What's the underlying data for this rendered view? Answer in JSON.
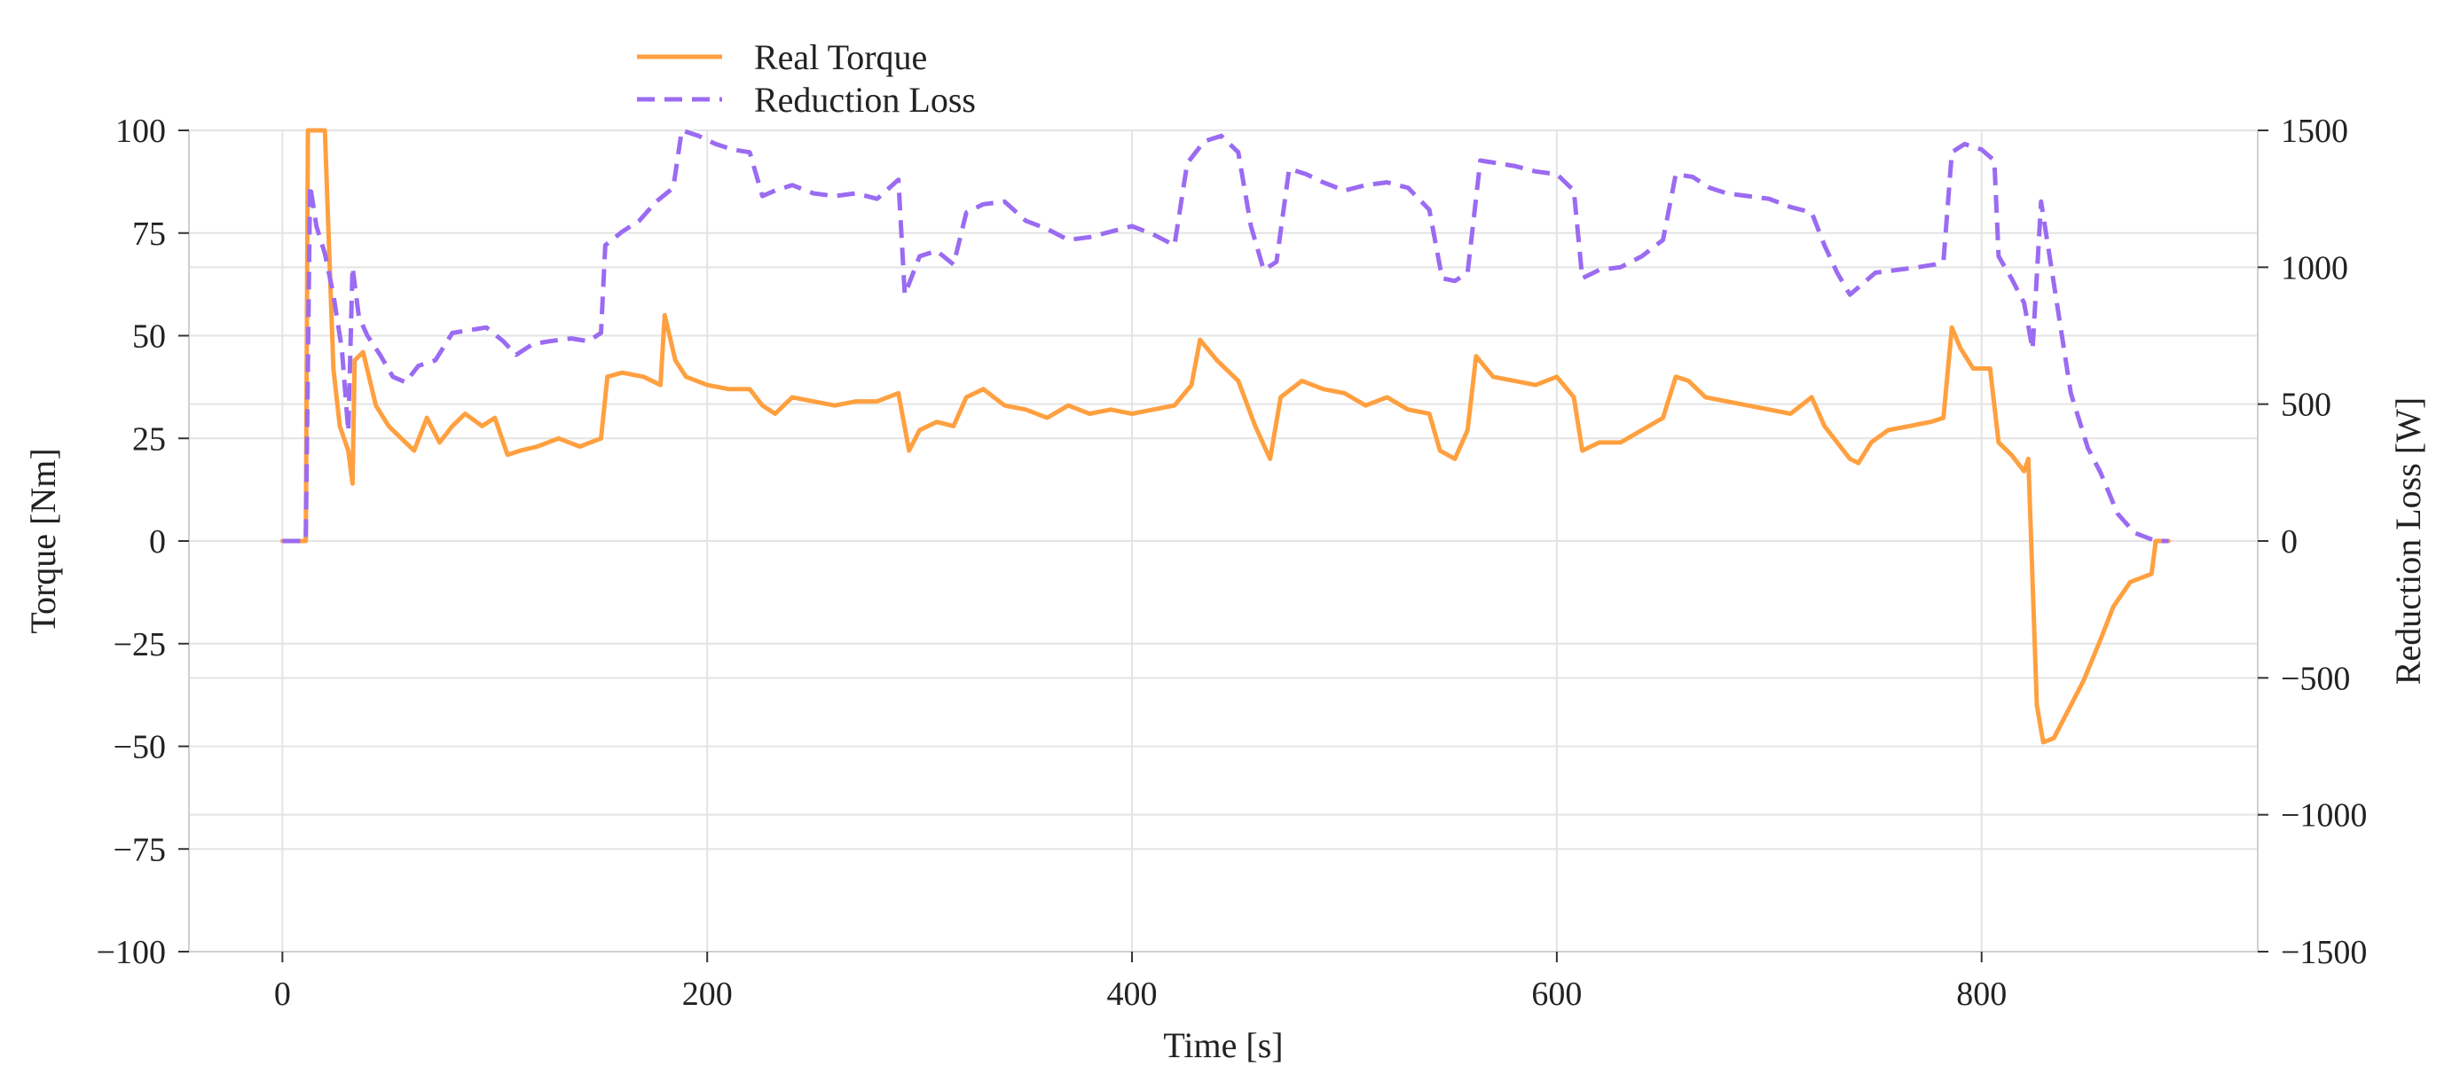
{
  "chart_data": {
    "type": "line",
    "title": "",
    "xlabel": "Time [s]",
    "ylabel": "Torque [Nm]",
    "y2label": "Reduction Loss [W]",
    "xlim": [
      -44,
      930
    ],
    "ylim": [
      -100,
      100
    ],
    "y2lim": [
      -1500,
      1500
    ],
    "xticks": [
      0,
      200,
      400,
      600,
      800
    ],
    "yticks": [
      -100,
      -75,
      -50,
      -25,
      0,
      25,
      50,
      75,
      100
    ],
    "y2ticks": [
      -1500,
      -1000,
      -500,
      0,
      500,
      1000,
      1500
    ],
    "grid": true,
    "legend_position": "top-left",
    "series": [
      {
        "name": "Real Torque",
        "axis": "left",
        "color": "#FFA040",
        "style": "solid",
        "points": [
          [
            0,
            0
          ],
          [
            11,
            0
          ],
          [
            12,
            100
          ],
          [
            20,
            100
          ],
          [
            24,
            42
          ],
          [
            27,
            28
          ],
          [
            31,
            22
          ],
          [
            33,
            14
          ],
          [
            34,
            44
          ],
          [
            38,
            46
          ],
          [
            44,
            33
          ],
          [
            50,
            28
          ],
          [
            56,
            25
          ],
          [
            62,
            22
          ],
          [
            68,
            30
          ],
          [
            74,
            24
          ],
          [
            80,
            28
          ],
          [
            86,
            31
          ],
          [
            94,
            28
          ],
          [
            100,
            30
          ],
          [
            106,
            21
          ],
          [
            112,
            22
          ],
          [
            120,
            23
          ],
          [
            130,
            25
          ],
          [
            140,
            23
          ],
          [
            150,
            25
          ],
          [
            153,
            40
          ],
          [
            160,
            41
          ],
          [
            170,
            40
          ],
          [
            178,
            38
          ],
          [
            180,
            55
          ],
          [
            185,
            44
          ],
          [
            190,
            40
          ],
          [
            200,
            38
          ],
          [
            210,
            37
          ],
          [
            220,
            37
          ],
          [
            226,
            33
          ],
          [
            232,
            31
          ],
          [
            240,
            35
          ],
          [
            250,
            34
          ],
          [
            260,
            33
          ],
          [
            270,
            34
          ],
          [
            280,
            34
          ],
          [
            290,
            36
          ],
          [
            295,
            22
          ],
          [
            300,
            27
          ],
          [
            308,
            29
          ],
          [
            316,
            28
          ],
          [
            322,
            35
          ],
          [
            330,
            37
          ],
          [
            340,
            33
          ],
          [
            350,
            32
          ],
          [
            360,
            30
          ],
          [
            370,
            33
          ],
          [
            380,
            31
          ],
          [
            390,
            32
          ],
          [
            400,
            31
          ],
          [
            410,
            32
          ],
          [
            420,
            33
          ],
          [
            428,
            38
          ],
          [
            432,
            49
          ],
          [
            440,
            44
          ],
          [
            450,
            39
          ],
          [
            458,
            28
          ],
          [
            465,
            20
          ],
          [
            470,
            35
          ],
          [
            480,
            39
          ],
          [
            490,
            37
          ],
          [
            500,
            36
          ],
          [
            510,
            33
          ],
          [
            520,
            35
          ],
          [
            530,
            32
          ],
          [
            540,
            31
          ],
          [
            545,
            22
          ],
          [
            552,
            20
          ],
          [
            558,
            27
          ],
          [
            562,
            45
          ],
          [
            570,
            40
          ],
          [
            580,
            39
          ],
          [
            590,
            38
          ],
          [
            600,
            40
          ],
          [
            608,
            35
          ],
          [
            612,
            22
          ],
          [
            620,
            24
          ],
          [
            630,
            24
          ],
          [
            640,
            27
          ],
          [
            650,
            30
          ],
          [
            656,
            40
          ],
          [
            662,
            39
          ],
          [
            670,
            35
          ],
          [
            680,
            34
          ],
          [
            690,
            33
          ],
          [
            700,
            32
          ],
          [
            710,
            31
          ],
          [
            720,
            35
          ],
          [
            726,
            28
          ],
          [
            732,
            24
          ],
          [
            738,
            20
          ],
          [
            742,
            19
          ],
          [
            748,
            24
          ],
          [
            756,
            27
          ],
          [
            766,
            28
          ],
          [
            776,
            29
          ],
          [
            782,
            30
          ],
          [
            786,
            52
          ],
          [
            790,
            47
          ],
          [
            796,
            42
          ],
          [
            804,
            42
          ],
          [
            808,
            24
          ],
          [
            814,
            21
          ],
          [
            820,
            17
          ],
          [
            822,
            20
          ],
          [
            826,
            -40
          ],
          [
            829,
            -49
          ],
          [
            834,
            -48
          ],
          [
            840,
            -42
          ],
          [
            848,
            -34
          ],
          [
            856,
            -24
          ],
          [
            862,
            -16
          ],
          [
            870,
            -10
          ],
          [
            880,
            -8
          ],
          [
            882,
            0
          ],
          [
            888,
            0
          ]
        ]
      },
      {
        "name": "Reduction Loss",
        "axis": "right",
        "color": "#9B6BF2",
        "style": "dashed",
        "points": [
          [
            0,
            0
          ],
          [
            11,
            0
          ],
          [
            13,
            1300
          ],
          [
            16,
            1150
          ],
          [
            20,
            1050
          ],
          [
            24,
            900
          ],
          [
            28,
            700
          ],
          [
            31,
            400
          ],
          [
            33,
            1000
          ],
          [
            36,
            820
          ],
          [
            40,
            750
          ],
          [
            46,
            680
          ],
          [
            52,
            600
          ],
          [
            58,
            580
          ],
          [
            64,
            640
          ],
          [
            72,
            660
          ],
          [
            80,
            760
          ],
          [
            88,
            770
          ],
          [
            96,
            780
          ],
          [
            104,
            730
          ],
          [
            110,
            680
          ],
          [
            118,
            720
          ],
          [
            126,
            730
          ],
          [
            136,
            740
          ],
          [
            144,
            730
          ],
          [
            150,
            760
          ],
          [
            152,
            1080
          ],
          [
            160,
            1130
          ],
          [
            168,
            1170
          ],
          [
            176,
            1240
          ],
          [
            184,
            1290
          ],
          [
            188,
            1500
          ],
          [
            196,
            1480
          ],
          [
            204,
            1450
          ],
          [
            212,
            1430
          ],
          [
            220,
            1420
          ],
          [
            226,
            1260
          ],
          [
            232,
            1280
          ],
          [
            240,
            1300
          ],
          [
            250,
            1270
          ],
          [
            260,
            1260
          ],
          [
            270,
            1270
          ],
          [
            280,
            1250
          ],
          [
            290,
            1320
          ],
          [
            293,
            900
          ],
          [
            300,
            1040
          ],
          [
            308,
            1060
          ],
          [
            316,
            1010
          ],
          [
            322,
            1200
          ],
          [
            330,
            1230
          ],
          [
            340,
            1240
          ],
          [
            350,
            1170
          ],
          [
            360,
            1140
          ],
          [
            370,
            1100
          ],
          [
            380,
            1110
          ],
          [
            390,
            1130
          ],
          [
            400,
            1150
          ],
          [
            410,
            1120
          ],
          [
            420,
            1080
          ],
          [
            426,
            1380
          ],
          [
            434,
            1460
          ],
          [
            442,
            1480
          ],
          [
            450,
            1420
          ],
          [
            456,
            1150
          ],
          [
            462,
            990
          ],
          [
            468,
            1020
          ],
          [
            474,
            1360
          ],
          [
            482,
            1340
          ],
          [
            490,
            1310
          ],
          [
            500,
            1280
          ],
          [
            510,
            1300
          ],
          [
            520,
            1310
          ],
          [
            530,
            1290
          ],
          [
            540,
            1210
          ],
          [
            546,
            960
          ],
          [
            552,
            950
          ],
          [
            558,
            980
          ],
          [
            564,
            1390
          ],
          [
            572,
            1380
          ],
          [
            580,
            1370
          ],
          [
            590,
            1350
          ],
          [
            600,
            1340
          ],
          [
            608,
            1280
          ],
          [
            612,
            960
          ],
          [
            620,
            990
          ],
          [
            630,
            1000
          ],
          [
            640,
            1040
          ],
          [
            650,
            1100
          ],
          [
            656,
            1340
          ],
          [
            664,
            1330
          ],
          [
            672,
            1290
          ],
          [
            680,
            1270
          ],
          [
            690,
            1260
          ],
          [
            700,
            1250
          ],
          [
            710,
            1220
          ],
          [
            720,
            1200
          ],
          [
            726,
            1080
          ],
          [
            732,
            980
          ],
          [
            738,
            900
          ],
          [
            744,
            940
          ],
          [
            750,
            980
          ],
          [
            760,
            990
          ],
          [
            770,
            1000
          ],
          [
            778,
            1010
          ],
          [
            782,
            1020
          ],
          [
            786,
            1420
          ],
          [
            792,
            1450
          ],
          [
            800,
            1430
          ],
          [
            806,
            1390
          ],
          [
            808,
            1040
          ],
          [
            814,
            960
          ],
          [
            820,
            870
          ],
          [
            824,
            700
          ],
          [
            828,
            1240
          ],
          [
            834,
            940
          ],
          [
            842,
            540
          ],
          [
            850,
            340
          ],
          [
            856,
            250
          ],
          [
            864,
            100
          ],
          [
            872,
            30
          ],
          [
            882,
            0
          ],
          [
            888,
            0
          ]
        ]
      }
    ]
  }
}
